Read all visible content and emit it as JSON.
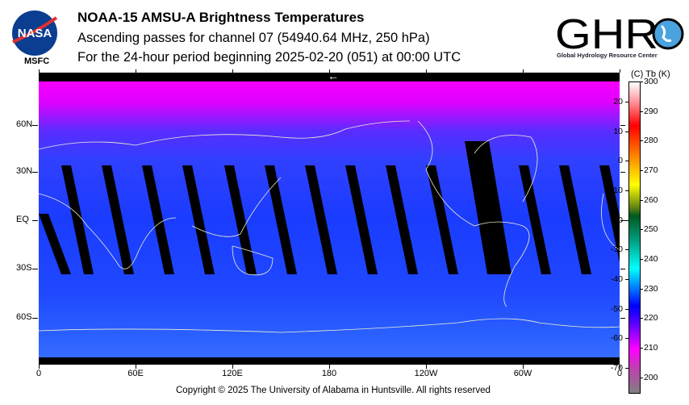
{
  "header": {
    "title": "NOAA-15 AMSU-A Brightness Temperatures",
    "subtitle1": "Ascending passes for channel 07 (54940.64 MHz, 250 hPa)",
    "subtitle2": "For the 24-hour period beginning 2025-02-20 (051) at 00:00 UTC"
  },
  "logos": {
    "nasa": "NASA",
    "msfc": "MSFC",
    "ghrc": "GHRC",
    "ghrc_full": "Global Hydrology Resource Center"
  },
  "map": {
    "lat_labels": [
      "60N",
      "30N",
      "EQ",
      "30S",
      "60S"
    ],
    "lon_labels": [
      "0",
      "60E",
      "120E",
      "180",
      "120W",
      "60W",
      "0"
    ],
    "arrow": "←"
  },
  "colorbar": {
    "header": "(C)  Tb  (K)",
    "kelvin_labels": [
      "300",
      "290",
      "280",
      "270",
      "260",
      "250",
      "240",
      "230",
      "220",
      "210",
      "200"
    ],
    "celsius_labels": [
      "20",
      "10",
      "0",
      "-10",
      "-20",
      "-30",
      "-40",
      "-50",
      "-60",
      "-70"
    ],
    "range_k": [
      195,
      300
    ]
  },
  "footer": {
    "copyright": "Copyright © 2025 The University of Alabama in Huntsville.  All rights reserved"
  }
}
